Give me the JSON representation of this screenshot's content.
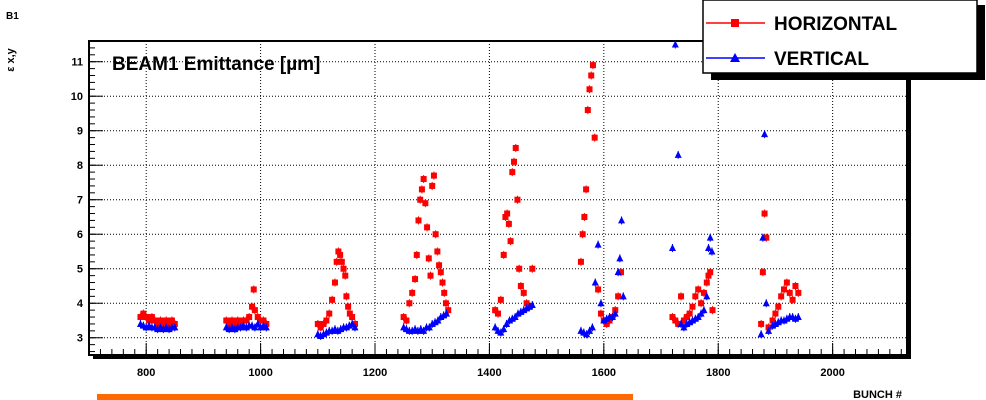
{
  "page": {
    "corner_label": "B1",
    "accent_color": "#ff6a00"
  },
  "chart_data": {
    "type": "scatter",
    "title": "BEAM1 Emittance [µm]",
    "xlabel": "BUNCH #",
    "ylabel": "ε x,y",
    "xlim": [
      700,
      2130
    ],
    "ylim": [
      2.5,
      11.6
    ],
    "x_ticks": [
      800,
      1000,
      1200,
      1400,
      1600,
      1800,
      2000
    ],
    "y_ticks": [
      3,
      4,
      5,
      6,
      7,
      8,
      9,
      10,
      11
    ],
    "grid": true,
    "legend_position": "top-right",
    "series": [
      {
        "name": "HORIZONTAL",
        "color": "#ff0000",
        "marker": "square",
        "points": [
          [
            790,
            3.6
          ],
          [
            795,
            3.7
          ],
          [
            800,
            3.6
          ],
          [
            805,
            3.5
          ],
          [
            810,
            3.6
          ],
          [
            815,
            3.5
          ],
          [
            820,
            3.4
          ],
          [
            825,
            3.5
          ],
          [
            830,
            3.4
          ],
          [
            835,
            3.5
          ],
          [
            840,
            3.4
          ],
          [
            845,
            3.5
          ],
          [
            850,
            3.4
          ],
          [
            940,
            3.5
          ],
          [
            945,
            3.4
          ],
          [
            950,
            3.5
          ],
          [
            955,
            3.4
          ],
          [
            960,
            3.5
          ],
          [
            965,
            3.4
          ],
          [
            970,
            3.5
          ],
          [
            975,
            3.5
          ],
          [
            980,
            3.6
          ],
          [
            985,
            3.9
          ],
          [
            988,
            4.4
          ],
          [
            990,
            3.8
          ],
          [
            995,
            3.6
          ],
          [
            1000,
            3.5
          ],
          [
            1005,
            3.5
          ],
          [
            1010,
            3.4
          ],
          [
            1100,
            3.4
          ],
          [
            1105,
            3.3
          ],
          [
            1110,
            3.4
          ],
          [
            1115,
            3.5
          ],
          [
            1120,
            3.7
          ],
          [
            1125,
            4.1
          ],
          [
            1130,
            4.6
          ],
          [
            1133,
            5.2
          ],
          [
            1136,
            5.5
          ],
          [
            1139,
            5.4
          ],
          [
            1142,
            5.2
          ],
          [
            1145,
            5.0
          ],
          [
            1148,
            4.8
          ],
          [
            1150,
            4.2
          ],
          [
            1153,
            3.9
          ],
          [
            1156,
            3.7
          ],
          [
            1160,
            3.6
          ],
          [
            1165,
            3.4
          ],
          [
            1250,
            3.6
          ],
          [
            1255,
            3.5
          ],
          [
            1260,
            4.0
          ],
          [
            1265,
            4.3
          ],
          [
            1270,
            4.7
          ],
          [
            1273,
            5.4
          ],
          [
            1276,
            6.4
          ],
          [
            1279,
            7.0
          ],
          [
            1282,
            7.3
          ],
          [
            1285,
            7.6
          ],
          [
            1288,
            6.9
          ],
          [
            1291,
            6.2
          ],
          [
            1294,
            5.3
          ],
          [
            1297,
            4.8
          ],
          [
            1300,
            7.4
          ],
          [
            1303,
            7.7
          ],
          [
            1306,
            6.0
          ],
          [
            1309,
            5.5
          ],
          [
            1312,
            5.1
          ],
          [
            1315,
            4.9
          ],
          [
            1318,
            4.6
          ],
          [
            1321,
            4.3
          ],
          [
            1324,
            4.0
          ],
          [
            1328,
            3.8
          ],
          [
            1410,
            3.8
          ],
          [
            1415,
            3.7
          ],
          [
            1420,
            4.1
          ],
          [
            1425,
            5.4
          ],
          [
            1428,
            6.5
          ],
          [
            1431,
            6.6
          ],
          [
            1434,
            6.3
          ],
          [
            1437,
            5.8
          ],
          [
            1440,
            7.8
          ],
          [
            1443,
            8.1
          ],
          [
            1446,
            8.5
          ],
          [
            1449,
            7.0
          ],
          [
            1452,
            5.0
          ],
          [
            1455,
            4.5
          ],
          [
            1460,
            4.3
          ],
          [
            1465,
            4.0
          ],
          [
            1470,
            3.9
          ],
          [
            1475,
            5.0
          ],
          [
            1560,
            5.2
          ],
          [
            1563,
            6.0
          ],
          [
            1566,
            6.5
          ],
          [
            1569,
            7.3
          ],
          [
            1572,
            9.6
          ],
          [
            1575,
            10.2
          ],
          [
            1578,
            10.6
          ],
          [
            1581,
            10.9
          ],
          [
            1584,
            8.8
          ],
          [
            1590,
            4.4
          ],
          [
            1595,
            3.7
          ],
          [
            1600,
            3.5
          ],
          [
            1605,
            3.4
          ],
          [
            1610,
            3.5
          ],
          [
            1615,
            3.6
          ],
          [
            1620,
            3.8
          ],
          [
            1625,
            4.2
          ],
          [
            1630,
            4.9
          ],
          [
            1720,
            3.6
          ],
          [
            1725,
            3.5
          ],
          [
            1730,
            3.4
          ],
          [
            1735,
            4.2
          ],
          [
            1740,
            3.5
          ],
          [
            1745,
            3.6
          ],
          [
            1750,
            3.7
          ],
          [
            1755,
            3.9
          ],
          [
            1760,
            4.2
          ],
          [
            1765,
            4.4
          ],
          [
            1770,
            4.0
          ],
          [
            1775,
            4.3
          ],
          [
            1780,
            4.6
          ],
          [
            1783,
            4.8
          ],
          [
            1786,
            4.9
          ],
          [
            1790,
            3.8
          ],
          [
            1875,
            3.4
          ],
          [
            1878,
            4.9
          ],
          [
            1881,
            6.6
          ],
          [
            1884,
            5.9
          ],
          [
            1888,
            3.3
          ],
          [
            1895,
            3.5
          ],
          [
            1900,
            3.7
          ],
          [
            1905,
            3.9
          ],
          [
            1910,
            4.2
          ],
          [
            1915,
            4.4
          ],
          [
            1920,
            4.6
          ],
          [
            1925,
            4.3
          ],
          [
            1930,
            4.1
          ],
          [
            1935,
            4.5
          ],
          [
            1940,
            4.3
          ]
        ]
      },
      {
        "name": "VERTICAL",
        "color": "#0000ff",
        "marker": "triangle",
        "points": [
          [
            790,
            3.4
          ],
          [
            795,
            3.35
          ],
          [
            800,
            3.3
          ],
          [
            805,
            3.35
          ],
          [
            810,
            3.3
          ],
          [
            815,
            3.3
          ],
          [
            820,
            3.25
          ],
          [
            825,
            3.3
          ],
          [
            830,
            3.25
          ],
          [
            835,
            3.3
          ],
          [
            840,
            3.25
          ],
          [
            845,
            3.3
          ],
          [
            850,
            3.3
          ],
          [
            940,
            3.3
          ],
          [
            945,
            3.25
          ],
          [
            950,
            3.3
          ],
          [
            955,
            3.25
          ],
          [
            960,
            3.3
          ],
          [
            965,
            3.3
          ],
          [
            970,
            3.35
          ],
          [
            975,
            3.3
          ],
          [
            980,
            3.35
          ],
          [
            985,
            3.35
          ],
          [
            990,
            3.3
          ],
          [
            995,
            3.4
          ],
          [
            1000,
            3.3
          ],
          [
            1005,
            3.35
          ],
          [
            1010,
            3.3
          ],
          [
            1100,
            3.1
          ],
          [
            1105,
            3.05
          ],
          [
            1110,
            3.1
          ],
          [
            1115,
            3.15
          ],
          [
            1120,
            3.2
          ],
          [
            1125,
            3.2
          ],
          [
            1130,
            3.25
          ],
          [
            1135,
            3.2
          ],
          [
            1140,
            3.25
          ],
          [
            1145,
            3.3
          ],
          [
            1150,
            3.3
          ],
          [
            1155,
            3.35
          ],
          [
            1160,
            3.4
          ],
          [
            1165,
            3.3
          ],
          [
            1250,
            3.3
          ],
          [
            1255,
            3.25
          ],
          [
            1260,
            3.2
          ],
          [
            1265,
            3.2
          ],
          [
            1270,
            3.25
          ],
          [
            1275,
            3.2
          ],
          [
            1280,
            3.25
          ],
          [
            1285,
            3.2
          ],
          [
            1290,
            3.3
          ],
          [
            1295,
            3.3
          ],
          [
            1300,
            3.4
          ],
          [
            1305,
            3.45
          ],
          [
            1310,
            3.5
          ],
          [
            1315,
            3.6
          ],
          [
            1320,
            3.65
          ],
          [
            1325,
            3.7
          ],
          [
            1410,
            3.3
          ],
          [
            1415,
            3.2
          ],
          [
            1420,
            3.15
          ],
          [
            1425,
            3.25
          ],
          [
            1430,
            3.4
          ],
          [
            1435,
            3.5
          ],
          [
            1440,
            3.55
          ],
          [
            1445,
            3.6
          ],
          [
            1450,
            3.7
          ],
          [
            1455,
            3.75
          ],
          [
            1460,
            3.8
          ],
          [
            1465,
            3.85
          ],
          [
            1470,
            3.9
          ],
          [
            1475,
            3.95
          ],
          [
            1560,
            3.2
          ],
          [
            1565,
            3.15
          ],
          [
            1570,
            3.1
          ],
          [
            1575,
            3.2
          ],
          [
            1580,
            3.3
          ],
          [
            1585,
            4.6
          ],
          [
            1590,
            5.7
          ],
          [
            1595,
            4.0
          ],
          [
            1600,
            3.5
          ],
          [
            1605,
            3.55
          ],
          [
            1610,
            3.6
          ],
          [
            1615,
            3.6
          ],
          [
            1620,
            3.7
          ],
          [
            1625,
            4.9
          ],
          [
            1628,
            5.3
          ],
          [
            1631,
            6.4
          ],
          [
            1634,
            4.2
          ],
          [
            1720,
            5.6
          ],
          [
            1725,
            11.5
          ],
          [
            1730,
            8.3
          ],
          [
            1735,
            3.4
          ],
          [
            1740,
            3.3
          ],
          [
            1745,
            3.4
          ],
          [
            1750,
            3.45
          ],
          [
            1755,
            3.5
          ],
          [
            1760,
            3.55
          ],
          [
            1765,
            3.6
          ],
          [
            1770,
            3.7
          ],
          [
            1775,
            3.8
          ],
          [
            1780,
            4.2
          ],
          [
            1783,
            5.6
          ],
          [
            1786,
            5.9
          ],
          [
            1789,
            5.5
          ],
          [
            1875,
            3.1
          ],
          [
            1878,
            5.9
          ],
          [
            1881,
            8.9
          ],
          [
            1884,
            4.0
          ],
          [
            1888,
            3.2
          ],
          [
            1895,
            3.35
          ],
          [
            1900,
            3.4
          ],
          [
            1905,
            3.45
          ],
          [
            1910,
            3.5
          ],
          [
            1915,
            3.5
          ],
          [
            1920,
            3.55
          ],
          [
            1925,
            3.6
          ],
          [
            1930,
            3.6
          ],
          [
            1935,
            3.55
          ],
          [
            1940,
            3.6
          ]
        ]
      }
    ]
  }
}
